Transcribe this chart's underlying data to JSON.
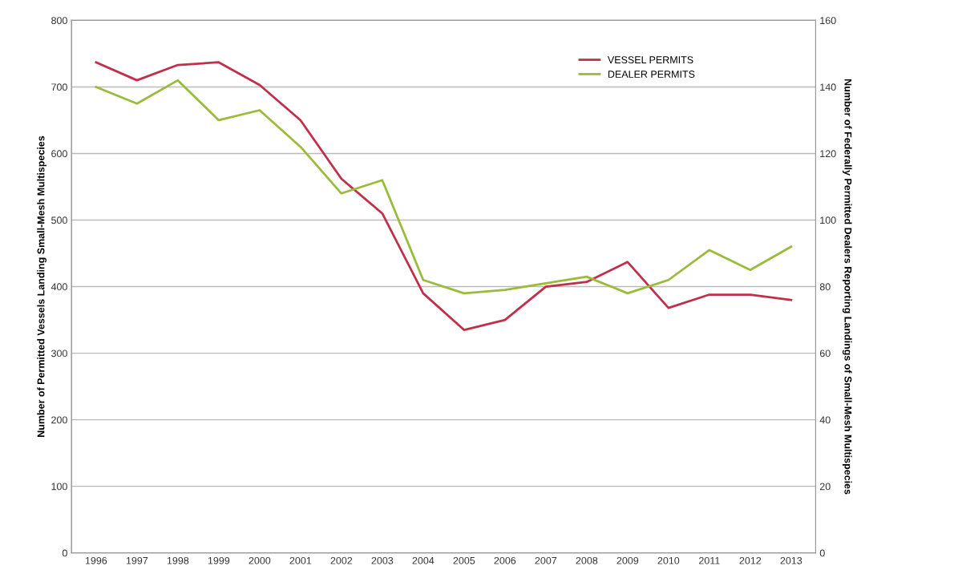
{
  "chart_data": {
    "type": "line",
    "categories": [
      "1996",
      "1997",
      "1998",
      "1999",
      "2000",
      "2001",
      "2002",
      "2003",
      "2004",
      "2005",
      "2006",
      "2007",
      "2008",
      "2009",
      "2010",
      "2011",
      "2012",
      "2013"
    ],
    "series": [
      {
        "name": "VESSEL PERMITS",
        "color": "#c0304a",
        "values": [
          737,
          710,
          733,
          737,
          703,
          650,
          562,
          510,
          390,
          335,
          350,
          400,
          407,
          437,
          368,
          388,
          388,
          380
        ]
      },
      {
        "name": "DEALER PERMITS",
        "color": "#9bbb3b",
        "axis": "y2",
        "values": [
          140,
          135,
          142,
          130,
          133,
          122,
          108,
          112,
          82,
          78,
          79,
          81,
          83,
          78,
          82,
          91,
          85,
          92
        ]
      }
    ],
    "ylabel": "Number of Permitted Vessels Landing Small-Mesh Multispecies",
    "y2label": "Number of Federally Permitted Dealers Reporting Landings of Small-Mesh Multispecies",
    "ylim": [
      0,
      800
    ],
    "yticks": [
      0,
      100,
      200,
      300,
      400,
      500,
      600,
      700,
      800
    ],
    "y2lim": [
      0,
      160
    ],
    "y2ticks": [
      0,
      20,
      40,
      60,
      80,
      100,
      120,
      140,
      160
    ],
    "grid": "y",
    "legend": "top right",
    "marker": "none",
    "line_style": "solid"
  }
}
